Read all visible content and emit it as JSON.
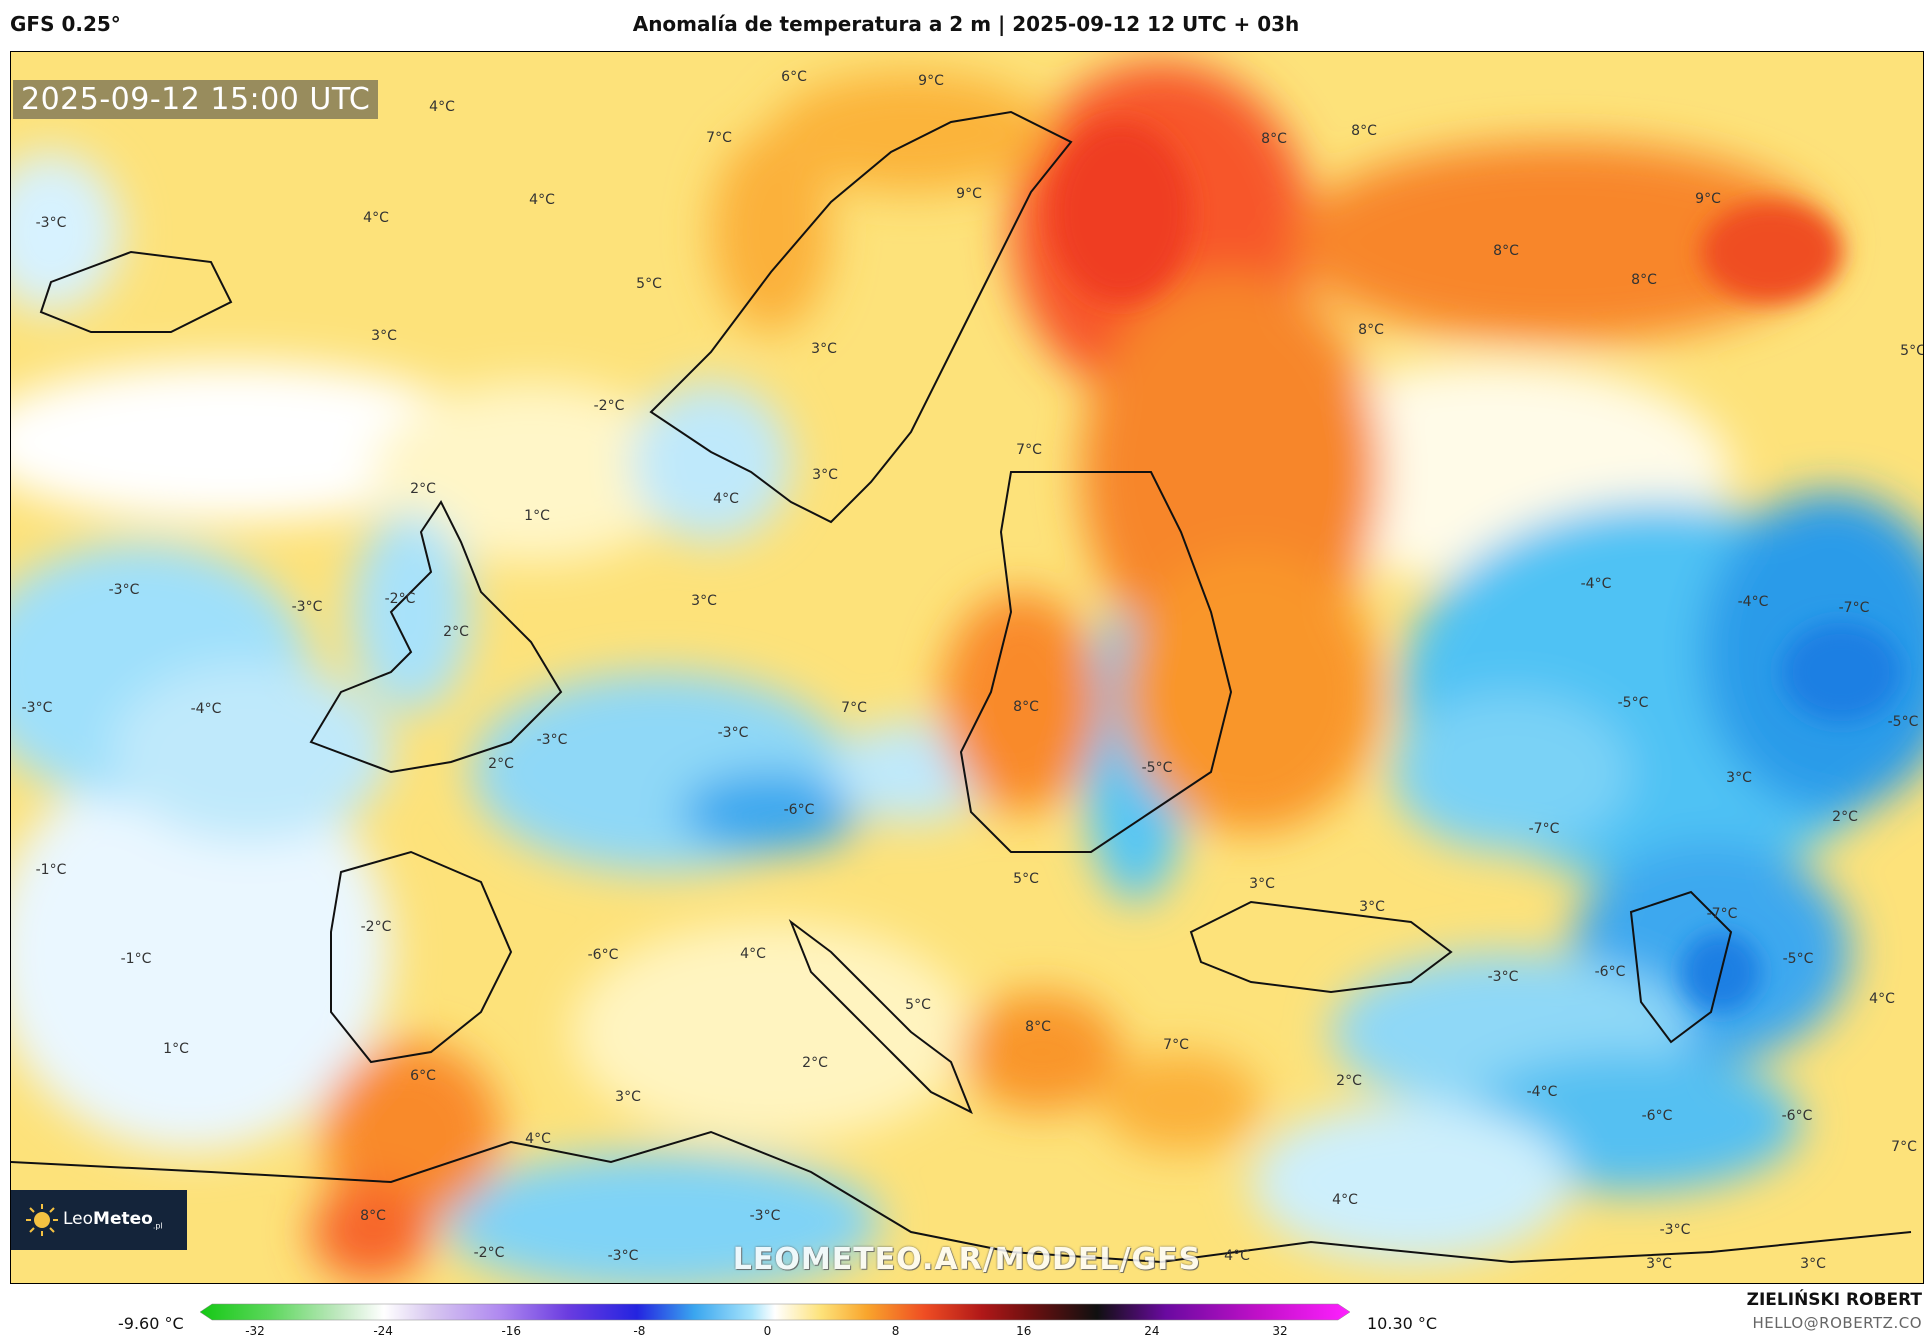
{
  "header": {
    "model": "GFS 0.25°",
    "title": "Anomalía de temperatura a 2 m | 2025-09-12 12 UTC + 03h"
  },
  "map": {
    "valid_time": "2025-09-12 15:00 UTC",
    "watermark": "LEOMETEO.AR/MODEL/GFS",
    "logo": {
      "text_a": "Leo",
      "text_b": "Meteo",
      "suffix": ".pl"
    },
    "labels": [
      {
        "text": "4°C"
      },
      {
        "text": "6°C"
      },
      {
        "text": "9°C"
      },
      {
        "text": "7°C"
      },
      {
        "text": "8°C"
      },
      {
        "text": "8°C"
      },
      {
        "text": "4°C"
      },
      {
        "text": "-3°C"
      },
      {
        "text": "4°C"
      },
      {
        "text": "9°C"
      },
      {
        "text": "8°C"
      },
      {
        "text": "9°C"
      },
      {
        "text": "5°C"
      },
      {
        "text": "8°C"
      },
      {
        "text": "3°C"
      },
      {
        "text": "8°C"
      },
      {
        "text": "3°C"
      },
      {
        "text": "5°C"
      },
      {
        "text": "-2°C"
      },
      {
        "text": "2°C"
      },
      {
        "text": "7°C"
      },
      {
        "text": "3°C"
      },
      {
        "text": "1°C"
      },
      {
        "text": "4°C"
      },
      {
        "text": "-3°C"
      },
      {
        "text": "-3°C"
      },
      {
        "text": "-2°C"
      },
      {
        "text": "2°C"
      },
      {
        "text": "3°C"
      },
      {
        "text": "-4°C"
      },
      {
        "text": "-4°C"
      },
      {
        "text": "-7°C"
      },
      {
        "text": "-3°C"
      },
      {
        "text": "-4°C"
      },
      {
        "text": "7°C"
      },
      {
        "text": "8°C"
      },
      {
        "text": "-5°C"
      },
      {
        "text": "-5°C"
      },
      {
        "text": "-3°C"
      },
      {
        "text": "-3°C"
      },
      {
        "text": "2°C"
      },
      {
        "text": "-5°C"
      },
      {
        "text": "3°C"
      },
      {
        "text": "-6°C"
      },
      {
        "text": "-7°C"
      },
      {
        "text": "2°C"
      },
      {
        "text": "-1°C"
      },
      {
        "text": "5°C"
      },
      {
        "text": "3°C"
      },
      {
        "text": "3°C"
      },
      {
        "text": "-7°C"
      },
      {
        "text": "-2°C"
      },
      {
        "text": "-1°C"
      },
      {
        "text": "-6°C"
      },
      {
        "text": "4°C"
      },
      {
        "text": "-3°C"
      },
      {
        "text": "-6°C"
      },
      {
        "text": "-5°C"
      },
      {
        "text": "5°C"
      },
      {
        "text": "8°C"
      },
      {
        "text": "4°C"
      },
      {
        "text": "1°C"
      },
      {
        "text": "7°C"
      },
      {
        "text": "2°C"
      },
      {
        "text": "6°C"
      },
      {
        "text": "2°C"
      },
      {
        "text": "-4°C"
      },
      {
        "text": "-6°C"
      },
      {
        "text": "-6°C"
      },
      {
        "text": "3°C"
      },
      {
        "text": "4°C"
      },
      {
        "text": "7°C"
      },
      {
        "text": "4°C"
      },
      {
        "text": "8°C"
      },
      {
        "text": "-3°C"
      },
      {
        "text": "-2°C"
      },
      {
        "text": "-3°C"
      },
      {
        "text": "4°C"
      },
      {
        "text": "-3°C"
      },
      {
        "text": "3°C"
      },
      {
        "text": "3°C"
      }
    ]
  },
  "colorbar": {
    "min_label": "-9.60 °C",
    "max_label": "10.30 °C",
    "ticks": [
      "-32",
      "-24",
      "-16",
      "-8",
      "0",
      "8",
      "16",
      "24",
      "32"
    ]
  },
  "credits": {
    "author": "ZIELIŃSKI ROBERT",
    "email": "HELLO@ROBERTZ.CO"
  }
}
